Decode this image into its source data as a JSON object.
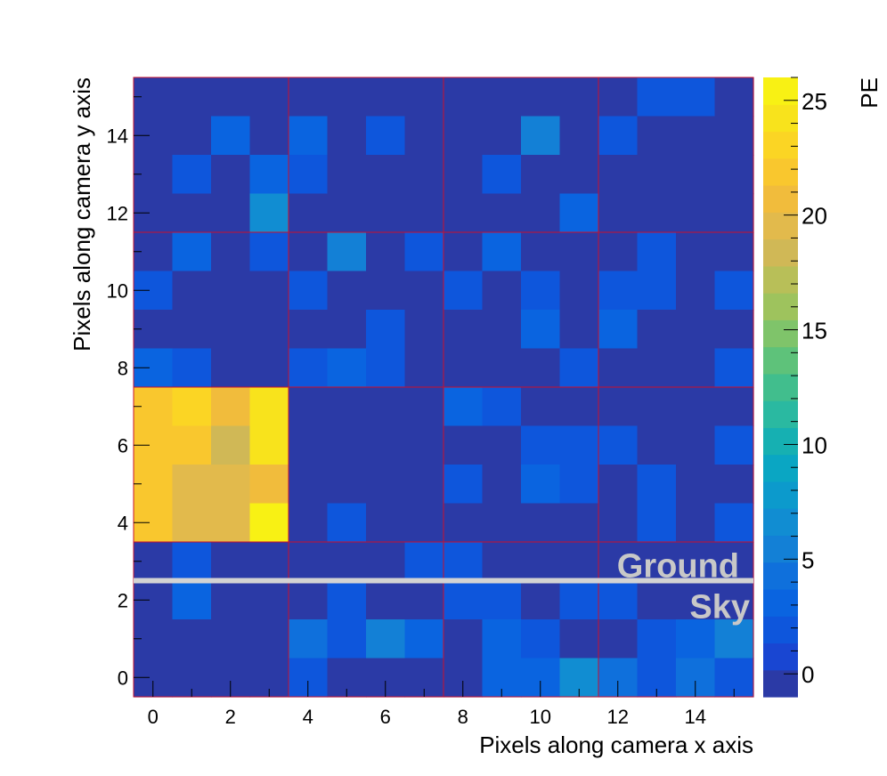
{
  "chart_data": {
    "type": "heatmap",
    "title": "",
    "xlabel": "Pixels along camera x axis",
    "ylabel": "Pixels along camera y axis",
    "colorbar_label": "PE",
    "x_range": [
      -0.5,
      15.5
    ],
    "y_range": [
      -0.5,
      15.5
    ],
    "x_ticks": [
      0,
      2,
      4,
      6,
      8,
      10,
      12,
      14
    ],
    "y_ticks": [
      0,
      2,
      4,
      6,
      8,
      10,
      12,
      14
    ],
    "zlim": [
      -1,
      26
    ],
    "colorbar_ticks": [
      0,
      5,
      10,
      15,
      20,
      25
    ],
    "grid_module_size": 2,
    "annotations": [
      {
        "text": "Ground",
        "position": "above-line"
      },
      {
        "text": "Sky",
        "position": "below-line"
      }
    ],
    "separator_line_y": 2.5,
    "z_rows_top_to_bottom": [
      [
        0,
        0,
        0,
        0,
        0,
        0,
        0,
        0,
        0,
        0,
        0,
        0,
        0,
        2,
        2,
        0
      ],
      [
        0,
        0,
        3,
        0,
        3,
        0,
        2,
        0,
        0,
        0,
        5,
        0,
        2,
        0,
        0,
        0
      ],
      [
        0,
        2,
        0,
        3,
        2,
        0,
        0,
        0,
        0,
        2,
        0,
        0,
        0,
        0,
        0,
        0
      ],
      [
        0,
        0,
        0,
        7,
        0,
        0,
        0,
        0,
        0,
        0,
        0,
        3,
        0,
        0,
        0,
        0
      ],
      [
        0,
        3,
        0,
        2,
        0,
        6,
        0,
        2,
        0,
        3,
        0,
        0,
        0,
        2,
        0,
        0
      ],
      [
        2,
        0,
        0,
        0,
        2,
        0,
        0,
        0,
        2,
        0,
        2,
        0,
        2,
        2,
        0,
        2
      ],
      [
        0,
        0,
        0,
        0,
        0,
        0,
        2,
        0,
        0,
        0,
        3,
        0,
        3,
        0,
        0,
        0
      ],
      [
        3,
        2,
        0,
        0,
        2,
        3,
        2,
        0,
        0,
        0,
        0,
        2,
        0,
        0,
        0,
        2
      ],
      [
        22,
        23,
        21,
        24,
        0,
        0,
        0,
        0,
        3,
        2,
        0,
        0,
        0,
        0,
        0,
        0
      ],
      [
        22,
        22,
        18,
        24,
        0,
        0,
        0,
        0,
        0,
        0,
        2,
        2,
        2,
        0,
        0,
        2
      ],
      [
        22,
        20,
        20,
        21,
        0,
        0,
        0,
        0,
        2,
        0,
        3,
        2,
        0,
        2,
        0,
        0
      ],
      [
        22,
        20,
        20,
        26,
        0,
        2,
        0,
        0,
        0,
        0,
        0,
        0,
        0,
        2,
        0,
        2
      ],
      [
        0,
        2,
        0,
        0,
        0,
        0,
        0,
        2,
        2,
        0,
        0,
        0,
        0,
        0,
        0,
        0
      ],
      [
        0,
        3,
        0,
        0,
        0,
        2,
        0,
        0,
        2,
        2,
        0,
        2,
        2,
        0,
        0,
        0
      ],
      [
        0,
        0,
        0,
        0,
        4,
        2,
        6,
        3,
        0,
        3,
        2,
        0,
        0,
        2,
        3,
        5
      ],
      [
        0,
        0,
        0,
        0,
        2,
        0,
        0,
        0,
        0,
        3,
        3,
        7,
        4,
        2,
        4,
        2
      ]
    ]
  },
  "colors": {
    "grid_line": "#c8102e",
    "separator_line": "#d3d3d3",
    "overlay_text": "#c8c8c8",
    "palette": [
      "#2b3aa6",
      "#1946d2",
      "#0e56dc",
      "#0a64e0",
      "#0f70dc",
      "#1380d6",
      "#118dd2",
      "#0c9acc",
      "#0aa6c3",
      "#16b0b2",
      "#2ab9a1",
      "#41be8d",
      "#5ec27a",
      "#7fc46a",
      "#9ec35d",
      "#b8bf58",
      "#d0b856",
      "#e2ba4c",
      "#f1bc3c",
      "#f9c72e",
      "#fbd524",
      "#f8e31c",
      "#f8f114"
    ]
  }
}
